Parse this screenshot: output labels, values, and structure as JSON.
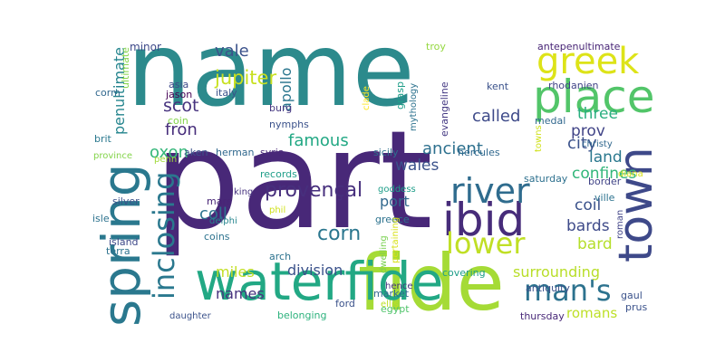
{
  "words": [
    {
      "id": "part",
      "text": "part",
      "color": "#482878"
    },
    {
      "id": "name",
      "text": "name",
      "color": "#2c8a8c"
    },
    {
      "id": "fide",
      "text": "fide",
      "color": "#a5db36"
    },
    {
      "id": "waterfide",
      "text": "waterfide",
      "color": "#22a884"
    },
    {
      "id": "spring",
      "text": "spring",
      "color": "#2a788e"
    },
    {
      "id": "place",
      "text": "place",
      "color": "#52c569"
    },
    {
      "id": "greek",
      "text": "greek",
      "color": "#dde318"
    },
    {
      "id": "town",
      "text": "town",
      "color": "#3e4989"
    },
    {
      "id": "ibid",
      "text": "ibid",
      "color": "#472c7a"
    },
    {
      "id": "river",
      "text": "river",
      "color": "#2f6c8e"
    },
    {
      "id": "lower",
      "text": "lower",
      "color": "#c0df25"
    },
    {
      "id": "mans",
      "text": "man's",
      "color": "#2c728e"
    },
    {
      "id": "inclosing",
      "text": "inclosing",
      "color": "#2a788e"
    },
    {
      "id": "provencal",
      "text": "provençal",
      "color": "#472f7d"
    },
    {
      "id": "corn",
      "text": "corn",
      "color": "#2a768e"
    },
    {
      "id": "jupiter",
      "text": "jupiter",
      "color": "#c8e020"
    },
    {
      "id": "scot",
      "text": "scot",
      "color": "#46327e"
    },
    {
      "id": "fron",
      "text": "fron",
      "color": "#472d7b"
    },
    {
      "id": "oxon",
      "text": "oxon",
      "color": "#34b679"
    },
    {
      "id": "penultimate",
      "text": "penultimate",
      "color": "#25858e"
    },
    {
      "id": "vale",
      "text": "vale",
      "color": "#3b528b"
    },
    {
      "id": "apollo",
      "text": "apollo",
      "color": "#2a768e"
    },
    {
      "id": "famous",
      "text": "famous",
      "color": "#22a884"
    },
    {
      "id": "called",
      "text": "called",
      "color": "#3e4a89"
    },
    {
      "id": "three",
      "text": "three",
      "color": "#29af7f"
    },
    {
      "id": "prov",
      "text": "prov",
      "color": "#414487"
    },
    {
      "id": "city",
      "text": "city",
      "color": "#3b528b"
    },
    {
      "id": "ancient",
      "text": "ancient",
      "color": "#2d708e"
    },
    {
      "id": "land",
      "text": "land",
      "color": "#2a788e"
    },
    {
      "id": "wales",
      "text": "wales",
      "color": "#3b528b"
    },
    {
      "id": "port",
      "text": "port",
      "color": "#31688e"
    },
    {
      "id": "coll",
      "text": "coll",
      "color": "#2c728e"
    },
    {
      "id": "confines",
      "text": "confines",
      "color": "#32b67a"
    },
    {
      "id": "coil",
      "text": "coil",
      "color": "#3b528b"
    },
    {
      "id": "bards",
      "text": "bards",
      "color": "#3e4a89"
    },
    {
      "id": "bard",
      "text": "bard",
      "color": "#b5de2b"
    },
    {
      "id": "miles",
      "text": "miles",
      "color": "#c2df23"
    },
    {
      "id": "division",
      "text": "division",
      "color": "#3b528b"
    },
    {
      "id": "surrounding",
      "text": "surrounding",
      "color": "#b8de29"
    },
    {
      "id": "names",
      "text": "names",
      "color": "#46327e"
    },
    {
      "id": "romans",
      "text": "romans",
      "color": "#bddf26"
    },
    {
      "id": "minor",
      "text": "minor",
      "color": "#3e4989"
    },
    {
      "id": "troy",
      "text": "troy",
      "color": "#95d840"
    },
    {
      "id": "antepenultimate",
      "text": "antepenultimate",
      "color": "#482576"
    },
    {
      "id": "ultimate",
      "text": "ultimate",
      "color": "#86d549"
    },
    {
      "id": "asia",
      "text": "asia",
      "color": "#3e4989"
    },
    {
      "id": "jason",
      "text": "jason",
      "color": "#440154"
    },
    {
      "id": "italy",
      "text": "italy",
      "color": "#3b528b"
    },
    {
      "id": "corm",
      "text": "corm",
      "color": "#31688e"
    },
    {
      "id": "coin",
      "text": "coin",
      "color": "#84d44b"
    },
    {
      "id": "burg",
      "text": "burg",
      "color": "#453781"
    },
    {
      "id": "nymphs",
      "text": "nymphs",
      "color": "#3b528b"
    },
    {
      "id": "grasp",
      "text": "grasp",
      "color": "#1f9e89"
    },
    {
      "id": "mythology",
      "text": "mythology",
      "color": "#2c728e"
    },
    {
      "id": "clade",
      "text": "clade",
      "color": "#fde725"
    },
    {
      "id": "evangeline",
      "text": "evangeline",
      "color": "#443983"
    },
    {
      "id": "kent",
      "text": "kent",
      "color": "#3b528b"
    },
    {
      "id": "rhodanien",
      "text": "rhodanien",
      "color": "#414487"
    },
    {
      "id": "medal",
      "text": "medal",
      "color": "#31688e"
    },
    {
      "id": "towns",
      "text": "towns",
      "color": "#d0e11c"
    },
    {
      "id": "brit",
      "text": "brit",
      "color": "#2a788e"
    },
    {
      "id": "province",
      "text": "province",
      "color": "#84d44b"
    },
    {
      "id": "penn",
      "text": "penn",
      "color": "#a0da39"
    },
    {
      "id": "aken",
      "text": "aken",
      "color": "#3b528b"
    },
    {
      "id": "herman",
      "text": "herman",
      "color": "#31688e"
    },
    {
      "id": "syria",
      "text": "syria",
      "color": "#482878"
    },
    {
      "id": "records",
      "text": "records",
      "color": "#1f9e89"
    },
    {
      "id": "sicily",
      "text": "sicily",
      "color": "#2d708e"
    },
    {
      "id": "hercules",
      "text": "hercules",
      "color": "#31688e"
    },
    {
      "id": "christy",
      "text": "christy",
      "color": "#31688e"
    },
    {
      "id": "border",
      "text": "border",
      "color": "#414487"
    },
    {
      "id": "diana",
      "text": "diana",
      "color": "#d8e219"
    },
    {
      "id": "saturday",
      "text": "saturday",
      "color": "#2d708e"
    },
    {
      "id": "goddess",
      "text": "goddess",
      "color": "#1f9e89"
    },
    {
      "id": "ville",
      "text": "ville",
      "color": "#2c728e"
    },
    {
      "id": "king",
      "text": "king",
      "color": "#46327e"
    },
    {
      "id": "mars",
      "text": "mars",
      "color": "#482576"
    },
    {
      "id": "delphi",
      "text": "delphi",
      "color": "#25858e"
    },
    {
      "id": "coins",
      "text": "coins",
      "color": "#2c728e"
    },
    {
      "id": "phil",
      "text": "phil",
      "color": "#d0e11c"
    },
    {
      "id": "greece",
      "text": "greece",
      "color": "#2c728e"
    },
    {
      "id": "pertaining",
      "text": "pertaining",
      "color": "#d8e219"
    },
    {
      "id": "dwelling",
      "text": "dwelling",
      "color": "#7ad151"
    },
    {
      "id": "roman",
      "text": "roman",
      "color": "#414487"
    },
    {
      "id": "silver",
      "text": "silver",
      "color": "#3b528b"
    },
    {
      "id": "isle",
      "text": "isle",
      "color": "#2c728e"
    },
    {
      "id": "island",
      "text": "island",
      "color": "#3e4989"
    },
    {
      "id": "terra",
      "text": "terra",
      "color": "#2c728e"
    },
    {
      "id": "arch",
      "text": "arch",
      "color": "#2c728e"
    },
    {
      "id": "hence",
      "text": "hence",
      "color": "#46327e"
    },
    {
      "id": "covering",
      "text": "covering",
      "color": "#1f9e89"
    },
    {
      "id": "antiquity",
      "text": "antiquity",
      "color": "#3b528b"
    },
    {
      "id": "gaul",
      "text": "gaul",
      "color": "#3b528b"
    },
    {
      "id": "prus",
      "text": "prus",
      "color": "#3b528b"
    },
    {
      "id": "market",
      "text": "market",
      "color": "#31688e"
    },
    {
      "id": "ellis",
      "text": "ellis",
      "color": "#bddf26"
    },
    {
      "id": "egypt",
      "text": "egypt",
      "color": "#50c46a"
    },
    {
      "id": "ford",
      "text": "ford",
      "color": "#3b528b"
    },
    {
      "id": "belonging",
      "text": "belonging",
      "color": "#2db27d"
    },
    {
      "id": "daughter",
      "text": "daughter",
      "color": "#3b528b"
    },
    {
      "id": "thursday",
      "text": "thursday",
      "color": "#482878"
    }
  ]
}
